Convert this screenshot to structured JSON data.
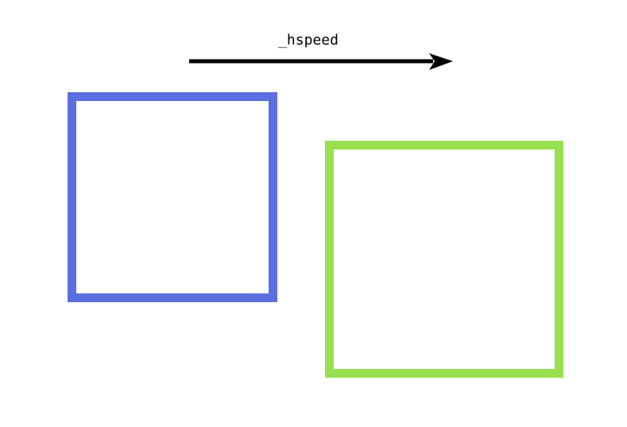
{
  "arrow": {
    "label": "_hspeed",
    "direction": "right",
    "color": "#000000"
  },
  "boxes": [
    {
      "id": "current",
      "color": "#5b6fe0"
    },
    {
      "id": "next",
      "color": "#98e04f"
    }
  ]
}
